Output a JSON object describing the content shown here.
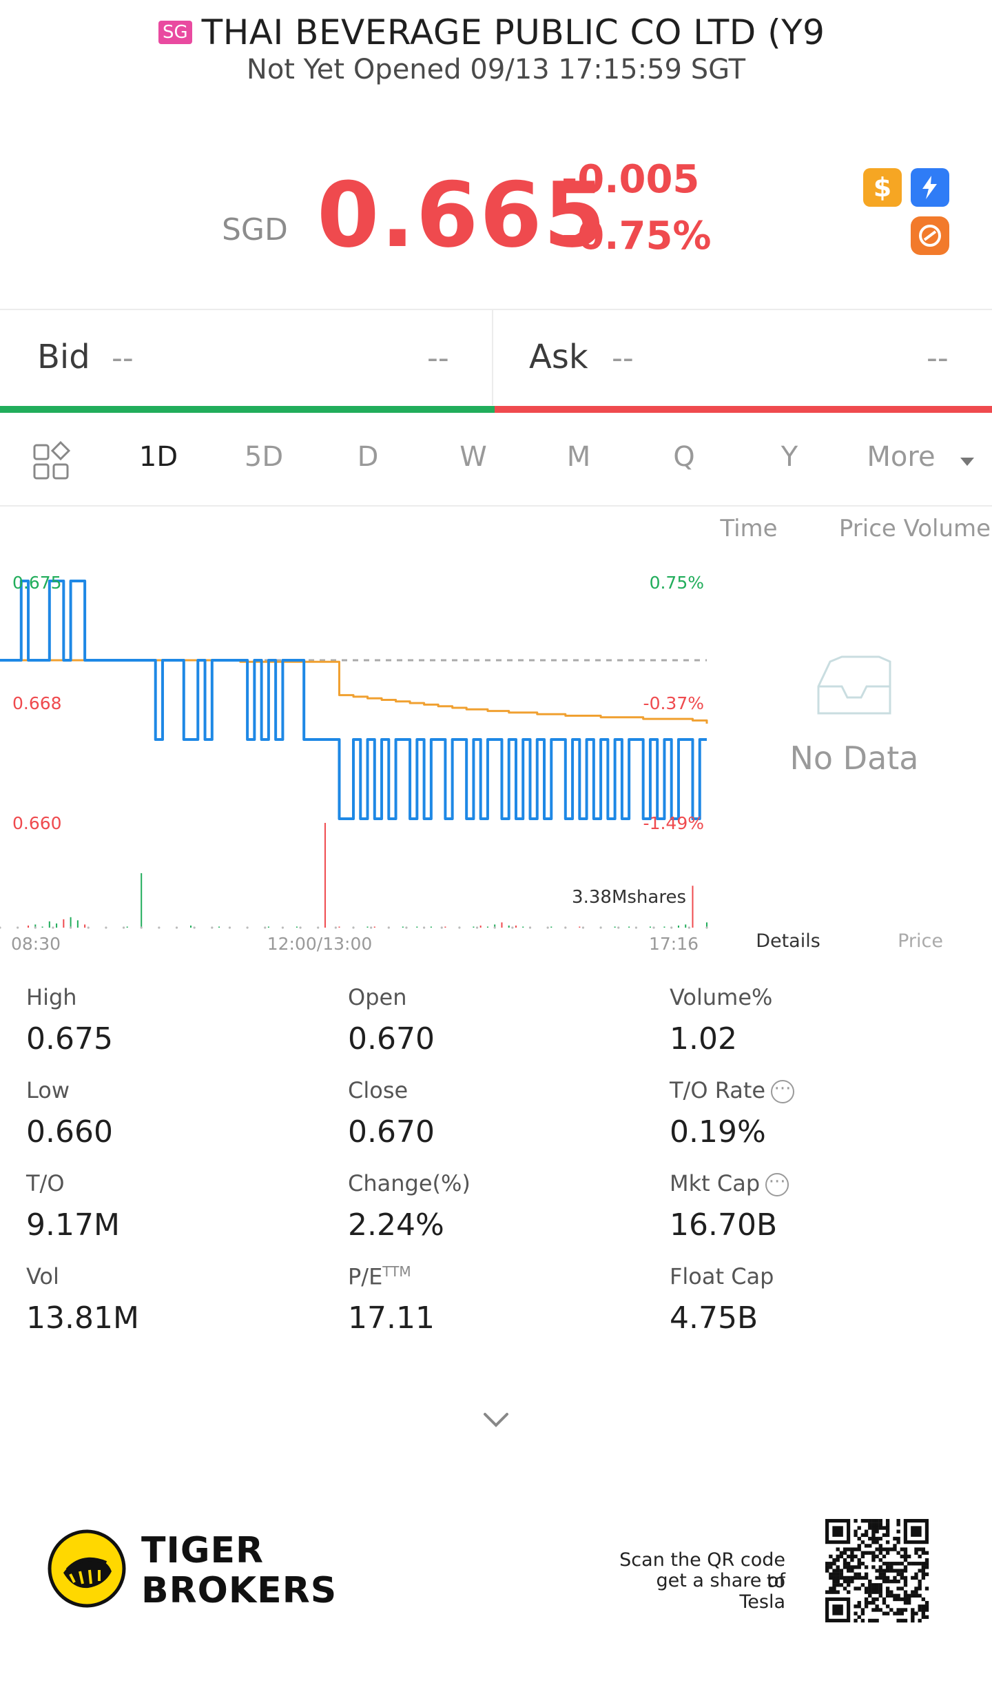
{
  "header": {
    "market_badge": "SG",
    "title": "THAI BEVERAGE PUBLIC CO LTD (Y9",
    "status": "Not Yet Opened 09/13 17:15:59 SGT"
  },
  "quote": {
    "currency": "SGD",
    "price": "0.665",
    "change": "-0.005",
    "change_pct": "-0.75%",
    "icons": [
      "dollar-icon",
      "flash-icon",
      "alternate-icon"
    ],
    "colors": {
      "down": "#ef4a4e",
      "up": "#21ad5b",
      "line": "#1e88e5",
      "avg": "#f0a030"
    }
  },
  "bid_ask": {
    "bid_label": "Bid",
    "bid_price": "--",
    "bid_size": "--",
    "ask_label": "Ask",
    "ask_price": "--",
    "ask_size": "--"
  },
  "periods": {
    "tabs": [
      "1D",
      "5D",
      "D",
      "W",
      "M",
      "Q",
      "Y"
    ],
    "active": "1D",
    "more_label": "More"
  },
  "side_panel": {
    "tab_time": "Time",
    "tab_price_volume": "Price Volume",
    "no_data": "No Data",
    "tab_details": "Details",
    "tab_price": "Price"
  },
  "chart_data": {
    "type": "line",
    "y_left_ticks": [
      "0.675",
      "0.668",
      "0.660"
    ],
    "y_right_ticks": [
      "0.75%",
      "-0.37%",
      "-1.49%"
    ],
    "x_ticks": [
      "08:30",
      "12:00/13:00",
      "17:16"
    ],
    "volume_label": "3.38Mshares",
    "ylim": [
      0.66,
      0.675
    ],
    "prev_close": 0.67,
    "series": [
      {
        "values": [
          0.67,
          0.67,
          0.67,
          0.675,
          0.67,
          0.67,
          0.67,
          0.675,
          0.675,
          0.67,
          0.675,
          0.675,
          0.67,
          0.67,
          0.67,
          0.67,
          0.67,
          0.67,
          0.67,
          0.67,
          0.67,
          0.67,
          0.665,
          0.67,
          0.67,
          0.67,
          0.665,
          0.665,
          0.67,
          0.665,
          0.67,
          0.67,
          0.67,
          0.67,
          0.67,
          0.665,
          0.67,
          0.665,
          0.67,
          0.665,
          0.67,
          0.67,
          0.67,
          0.665,
          0.665,
          0.665,
          0.665,
          0.665,
          0.66,
          0.66,
          0.665,
          0.66,
          0.665,
          0.66,
          0.665,
          0.66,
          0.665,
          0.665,
          0.66,
          0.665,
          0.66,
          0.665,
          0.665,
          0.66,
          0.665,
          0.665,
          0.66,
          0.665,
          0.66,
          0.665,
          0.665,
          0.66,
          0.665,
          0.66,
          0.665,
          0.66,
          0.665,
          0.66,
          0.665,
          0.665,
          0.66,
          0.665,
          0.66,
          0.665,
          0.66,
          0.665,
          0.66,
          0.665,
          0.66,
          0.665,
          0.665,
          0.66,
          0.665,
          0.66,
          0.665,
          0.66,
          0.665,
          0.665,
          0.66,
          0.665,
          0.665
        ]
      },
      {
        "values": [
          0.67,
          0.67,
          0.67,
          0.67,
          0.67,
          0.67,
          0.67,
          0.67,
          0.67,
          0.67,
          0.67,
          0.67,
          0.67,
          0.67,
          0.67,
          0.67,
          0.67,
          0.67,
          0.67,
          0.67,
          0.67,
          0.67,
          0.67,
          0.67,
          0.67,
          0.67,
          0.67,
          0.67,
          0.67,
          0.67,
          0.67,
          0.67,
          0.67,
          0.67,
          0.6699,
          0.6699,
          0.6699,
          0.6699,
          0.6699,
          0.6699,
          0.6699,
          0.6699,
          0.6699,
          0.6699,
          0.6699,
          0.6699,
          0.6699,
          0.6699,
          0.6678,
          0.6678,
          0.6677,
          0.6677,
          0.6676,
          0.6676,
          0.6675,
          0.6675,
          0.6674,
          0.6674,
          0.6673,
          0.6673,
          0.6672,
          0.6672,
          0.6671,
          0.6671,
          0.667,
          0.667,
          0.6669,
          0.6669,
          0.6669,
          0.6668,
          0.6668,
          0.6668,
          0.6667,
          0.6667,
          0.6667,
          0.6667,
          0.6666,
          0.6666,
          0.6666,
          0.6666,
          0.6665,
          0.6665,
          0.6665,
          0.6665,
          0.6665,
          0.6664,
          0.6664,
          0.6664,
          0.6664,
          0.6664,
          0.6664,
          0.6663,
          0.6663,
          0.6663,
          0.6663,
          0.6663,
          0.6663,
          0.6663,
          0.6662,
          0.6662,
          0.666
        ]
      }
    ],
    "volume": [
      0,
      0,
      0,
      0,
      2,
      3,
      1,
      6,
      4,
      8,
      10,
      7,
      3,
      0,
      0,
      0,
      0,
      0,
      1,
      0,
      52,
      0,
      0,
      0,
      0,
      0,
      0,
      2,
      0,
      0,
      0,
      1,
      0,
      0,
      0,
      0,
      0,
      0,
      1,
      0,
      0,
      0,
      1,
      0,
      0,
      0,
      100,
      0,
      1,
      0,
      1,
      0,
      1,
      1,
      0,
      1,
      0,
      1,
      0,
      1,
      0,
      1,
      0,
      1,
      0,
      1,
      0,
      1,
      2,
      1,
      3,
      5,
      2,
      2,
      1,
      1,
      0,
      0,
      1,
      0,
      1,
      0,
      1,
      0,
      0,
      1,
      0,
      1,
      0,
      1,
      0,
      0,
      1,
      0,
      1,
      0,
      2,
      3,
      40,
      0,
      5
    ]
  },
  "stats": [
    {
      "label": "High",
      "value": "0.675"
    },
    {
      "label": "Open",
      "value": "0.670"
    },
    {
      "label": "Volume%",
      "value": "1.02"
    },
    {
      "label": "Low",
      "value": "0.660"
    },
    {
      "label": "Close",
      "value": "0.670"
    },
    {
      "label": "T/O Rate",
      "value": "0.19%"
    },
    {
      "label": "T/O",
      "value": "9.17M"
    },
    {
      "label": "Change(%)",
      "value": "2.24%"
    },
    {
      "label": "Mkt Cap",
      "value": "16.70B"
    },
    {
      "label": "Vol",
      "value": "13.81M"
    },
    {
      "label": "P/E",
      "label_sup": "TTM",
      "value": "17.11"
    },
    {
      "label": "Float Cap",
      "value": "4.75B"
    }
  ],
  "footer": {
    "brand_line1": "TIGER",
    "brand_line2": "BROKERS",
    "qr_text_line1": "Scan the QR code to",
    "qr_text_line2": "get a share of Tesla"
  }
}
